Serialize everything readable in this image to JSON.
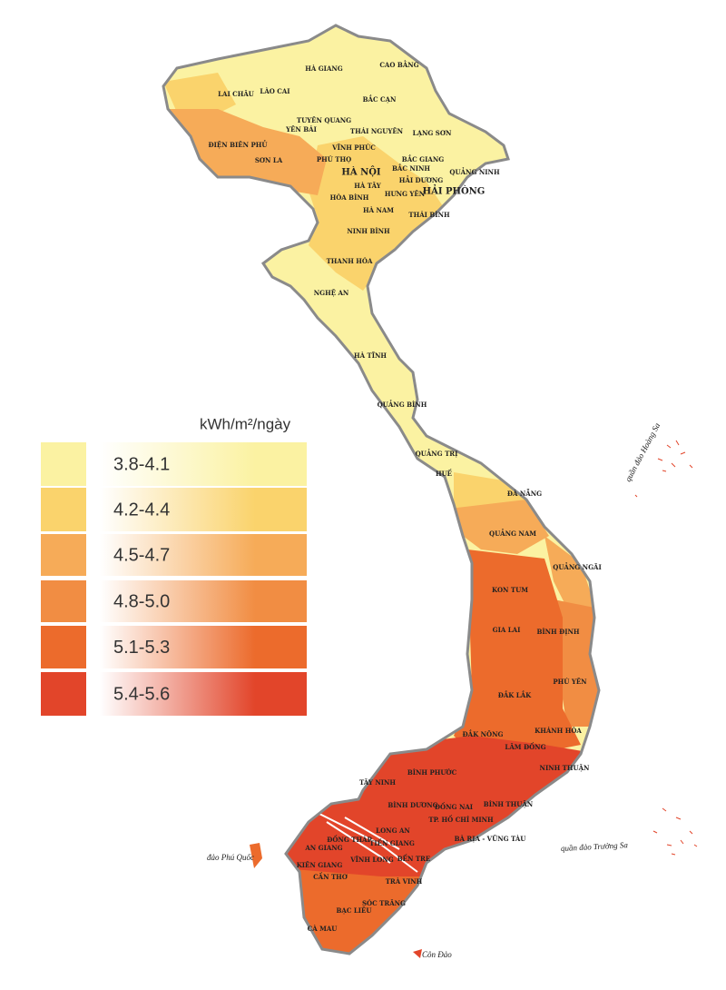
{
  "legend": {
    "title": "kWh/m²/ngày",
    "items": [
      {
        "label": "3.8-4.1",
        "color": "#fbf2a2"
      },
      {
        "label": "4.2-4.4",
        "color": "#fad36c"
      },
      {
        "label": "4.5-4.7",
        "color": "#f6ab58"
      },
      {
        "label": "4.8-5.0",
        "color": "#f18d43"
      },
      {
        "label": "5.1-5.3",
        "color": "#ec6b2c"
      },
      {
        "label": "5.4-5.6",
        "color": "#e2452a"
      }
    ]
  },
  "provinces": [
    "HÀ GIANG",
    "CAO BẰNG",
    "LAI CHÂU",
    "LÀO CAI",
    "BẮC CẠN",
    "TUYÊN QUANG",
    "YÊN BÁI",
    "THÁI NGUYÊN",
    "LẠNG SƠN",
    "VĨNH PHÚC",
    "ĐIỆN BIÊN PHỦ",
    "SƠN LA",
    "PHÚ THỌ",
    "BẮC GIANG",
    "HÀ NỘI",
    "BẮC NINH",
    "QUẢNG NINH",
    "HẢI DƯƠNG",
    "HẢI PHÒNG",
    "HÀ TÂY",
    "HÒA BÌNH",
    "HƯNG YÊN",
    "HÀ NAM",
    "THÁI BÌNH",
    "NINH BÌNH",
    "THANH HÓA",
    "NGHỆ AN",
    "HÀ TĨNH",
    "QUẢNG BÌNH",
    "QUẢNG TRỊ",
    "HUẾ",
    "ĐÀ NẴNG",
    "QUẢNG NAM",
    "QUẢNG NGÃI",
    "KON TUM",
    "GIA LAI",
    "BÌNH ĐỊNH",
    "PHÚ YÊN",
    "ĐẮK LẮK",
    "KHÁNH HÒA",
    "ĐẮK NÔNG",
    "LÂM ĐỒNG",
    "NINH THUẬN",
    "TÂY NINH",
    "BÌNH PHƯỚC",
    "BÌNH DƯƠNG",
    "ĐỒNG NAI",
    "BÌNH THUẬN",
    "TP. HỒ CHÍ MINH",
    "LONG AN",
    "ĐỒNG THÁP",
    "TIỀN GIANG",
    "BÀ RỊA - VŨNG TÀU",
    "AN GIANG",
    "VĨNH LONG",
    "BẾN TRE",
    "KIÊN GIANG",
    "CẦN THƠ",
    "TRÀ VINH",
    "SÓC TRĂNG",
    "BẠC LIÊU",
    "CÀ MAU"
  ],
  "islands": [
    "quần đảo Hoàng Sa",
    "quần đảo Trường Sa",
    "đảo Phú Quốc",
    "Côn Đảo"
  ]
}
